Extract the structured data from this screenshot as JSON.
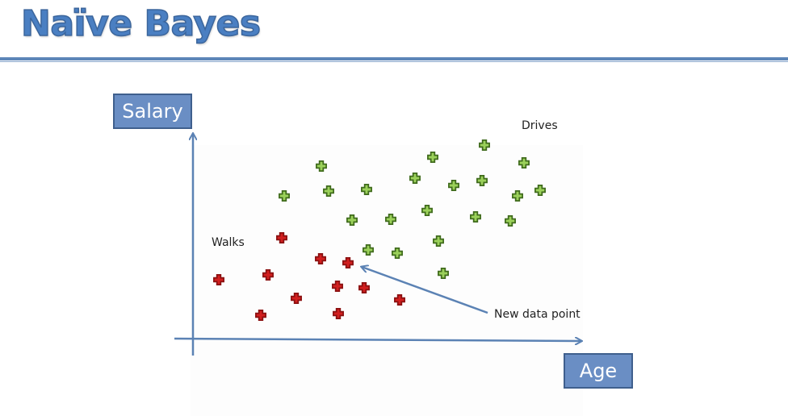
{
  "title": "Naïve Bayes",
  "axes": {
    "y_label": "Salary",
    "x_label": "Age"
  },
  "annotations": {
    "walks": "Walks",
    "drives": "Drives",
    "new_point": "New data point"
  },
  "colors": {
    "title": "#4a7fc2",
    "axis": "#5b82b4",
    "walks_marker": "#d21f1f",
    "drives_marker": "#9bd15a",
    "label_box": "#6a8ec4"
  },
  "groups": {
    "walks": {
      "count": 12,
      "marker": "red-plus-icon"
    },
    "drives": {
      "count": 26,
      "marker": "green-plus-icon"
    }
  }
}
